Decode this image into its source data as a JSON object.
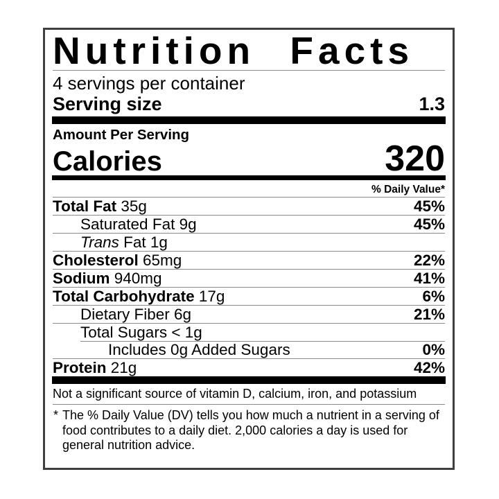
{
  "label": {
    "title": "Nutrition Facts",
    "servings_per_container": "4 servings per container",
    "serving_size_label": "Serving size",
    "serving_size_value": "1.3",
    "amount_per_serving": "Amount Per Serving",
    "calories_label": "Calories",
    "calories_value": "320",
    "daily_value_header": "% Daily Value*",
    "rows": [
      {
        "bold": "Total Fat",
        "italic": "",
        "rest": " 35g",
        "pct": "45%"
      },
      {
        "bold": "",
        "italic": "",
        "rest": "Saturated Fat 9g",
        "pct": "45%"
      },
      {
        "bold": "",
        "italic": "Trans",
        "rest": " Fat 1g",
        "pct": ""
      },
      {
        "bold": "Cholesterol",
        "italic": "",
        "rest": " 65mg",
        "pct": "22%"
      },
      {
        "bold": "Sodium",
        "italic": "",
        "rest": " 940mg",
        "pct": "41%"
      },
      {
        "bold": "Total Carbohydrate",
        "italic": "",
        "rest": " 17g",
        "pct": "6%"
      },
      {
        "bold": "",
        "italic": "",
        "rest": "Dietary Fiber 6g",
        "pct": "21%"
      },
      {
        "bold": "",
        "italic": "",
        "rest": "Total Sugars < 1g",
        "pct": ""
      },
      {
        "bold": "",
        "italic": "",
        "rest": "Includes 0g Added Sugars",
        "pct": "0%"
      },
      {
        "bold": "Protein",
        "italic": "",
        "rest": " 21g",
        "pct": "42%"
      }
    ],
    "not_significant": "Not a significant source of vitamin D, calcium, iron, and potassium",
    "footnote_marker": "*",
    "footnote": "The % Daily Value (DV) tells you how much a nutrient in a serving of food contributes to a daily diet. 2,000 calories a day is used for general nutrition advice."
  },
  "colors": {
    "text": "#000000",
    "thin_rule": "#8a8a8a",
    "thick_bar": "#000000",
    "border": "#3f3f3f",
    "background": "#ffffff"
  }
}
